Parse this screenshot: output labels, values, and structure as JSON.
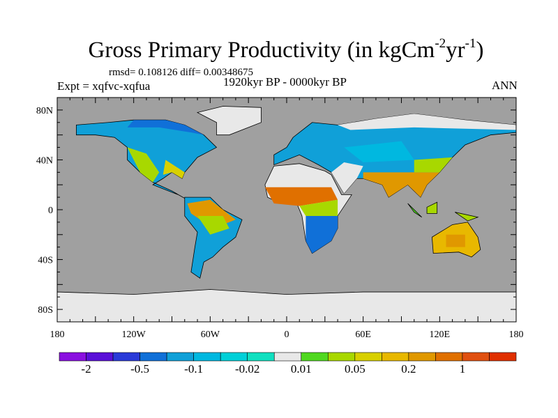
{
  "title": {
    "main": "Gross Primary Productivity (in kgCm",
    "exp1": "-2",
    "unit2": "yr",
    "exp2": "-1",
    "close": ")"
  },
  "stats": "rmsd= 0.108126 diff= 0.00348675",
  "experiment": "Expt = xqfvc-xqfua",
  "period": "1920kyr BP - 0000kyr BP",
  "season": "ANN",
  "map": {
    "ocean_color": "#a0a0a0",
    "x_ticks": [
      "180",
      "120W",
      "60W",
      "0",
      "60E",
      "120E",
      "180"
    ],
    "y_ticks": [
      "80N",
      "40N",
      "0",
      "40S",
      "80S"
    ]
  },
  "colorbar": {
    "colors": [
      "#8a10e0",
      "#5a10d8",
      "#2a3ad8",
      "#1070d8",
      "#10a0d8",
      "#00b8e0",
      "#00d0d8",
      "#10e0c0",
      "#e8e8e8",
      "#50d820",
      "#a8d800",
      "#d8d000",
      "#e8b800",
      "#e09800",
      "#e07000",
      "#e05010",
      "#e03000"
    ],
    "labels": [
      "-2",
      "-0.5",
      "-0.1",
      "-0.02",
      "0.01",
      "0.05",
      "0.2",
      "1"
    ]
  }
}
